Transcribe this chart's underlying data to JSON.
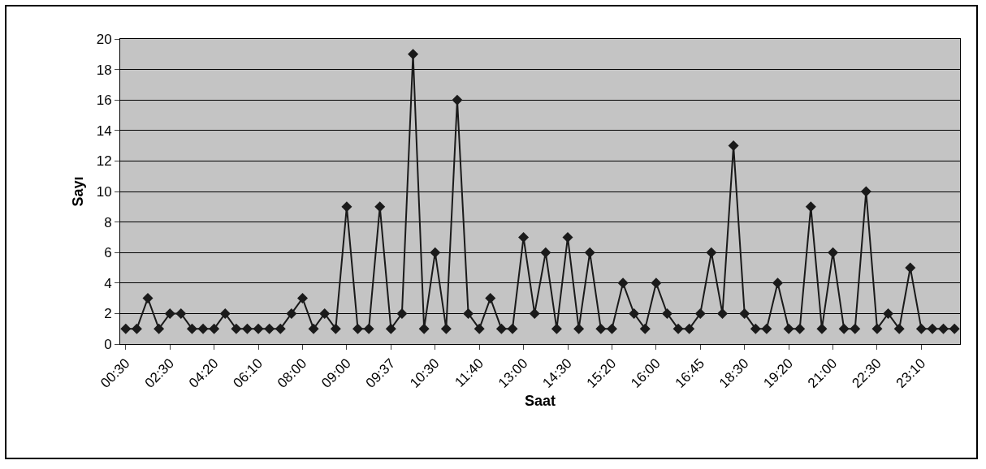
{
  "chart_data": {
    "type": "line",
    "xlabel": "Saat",
    "ylabel": "Sayı",
    "categories": [
      "00:30",
      null,
      null,
      null,
      "02:30",
      null,
      null,
      null,
      "04:20",
      null,
      null,
      null,
      "06:10",
      null,
      null,
      null,
      "08:00",
      null,
      null,
      null,
      "09:00",
      null,
      null,
      null,
      "09:37",
      null,
      null,
      null,
      "10:30",
      null,
      null,
      null,
      "11:40",
      null,
      null,
      null,
      "13:00",
      null,
      null,
      null,
      "14:30",
      null,
      null,
      null,
      "15:20",
      null,
      null,
      null,
      "16:00",
      null,
      null,
      null,
      "16:45",
      null,
      null,
      null,
      "18:30",
      null,
      null,
      null,
      "19:20",
      null,
      null,
      null,
      "21:00",
      null,
      null,
      null,
      "22:30",
      null,
      null,
      null,
      "23:10",
      null,
      null,
      null
    ],
    "series": [
      {
        "color": "#1a1a1a",
        "values": [
          1,
          1,
          3,
          1,
          2,
          2,
          1,
          1,
          1,
          2,
          1,
          1,
          1,
          1,
          1,
          2,
          3,
          1,
          2,
          1,
          9,
          1,
          1,
          9,
          1,
          2,
          19,
          1,
          6,
          1,
          16,
          2,
          1,
          3,
          1,
          1,
          7,
          2,
          6,
          1,
          7,
          1,
          6,
          1,
          1,
          4,
          2,
          1,
          4,
          2,
          1,
          1,
          2,
          6,
          2,
          13,
          2,
          1,
          1,
          4,
          1,
          1,
          9,
          1,
          6,
          1,
          1,
          10,
          1,
          2,
          1,
          5,
          1,
          1,
          1,
          1
        ]
      }
    ],
    "ylim": [
      0,
      20
    ],
    "yticks": [
      0,
      2,
      4,
      6,
      8,
      10,
      12,
      14,
      16,
      18,
      20
    ],
    "grid": "y",
    "marker": "diamond",
    "line_style": "solid"
  }
}
